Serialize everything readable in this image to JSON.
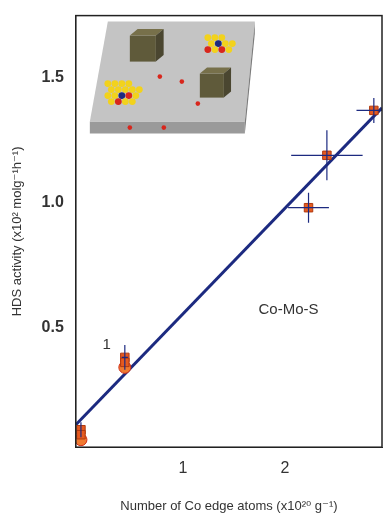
{
  "chart_data": {
    "type": "scatter",
    "x_label": "Number of Co edge atoms (x10²⁰ g⁻¹)",
    "y_label": "HDS activity (x10² molg⁻¹h⁻¹)",
    "xlim": [
      -0.05,
      2.95
    ],
    "ylim": [
      0.02,
      1.75
    ],
    "xticks": [
      1,
      2
    ],
    "yticks": [
      0.5,
      {
        "value": 1,
        "label": "1.0"
      },
      1.5
    ],
    "grid": false,
    "series": [
      {
        "type": "line",
        "color": "#1c2a80",
        "line_style": "solid",
        "x": [
          -0.05,
          2.95
        ],
        "values": [
          0.11,
          1.38
        ]
      },
      {
        "type": "scatter",
        "marker": "square",
        "color": "#e55a1f",
        "x": [
          0,
          0,
          0.43,
          0.43,
          2.23,
          2.41,
          2.87
        ],
        "values": [
          0.09,
          0.07,
          0.38,
          0.36,
          0.98,
          1.19,
          1.37
        ],
        "x_err": [
          null,
          null,
          0.03,
          null,
          0.2,
          0.35,
          0.17
        ],
        "y_err": [
          0.03,
          null,
          0.05,
          null,
          0.06,
          0.1,
          0.05
        ]
      },
      {
        "type": "scatter",
        "marker": "circle",
        "color": "#f07a30",
        "x": [
          0,
          0.43
        ],
        "values": [
          0.05,
          0.34
        ]
      }
    ],
    "annotations": [
      {
        "text": "Co-Mo-S",
        "x": 1.74,
        "y": 0.57
      },
      {
        "text": "1",
        "x": 0.21,
        "y": 0.43
      }
    ]
  }
}
